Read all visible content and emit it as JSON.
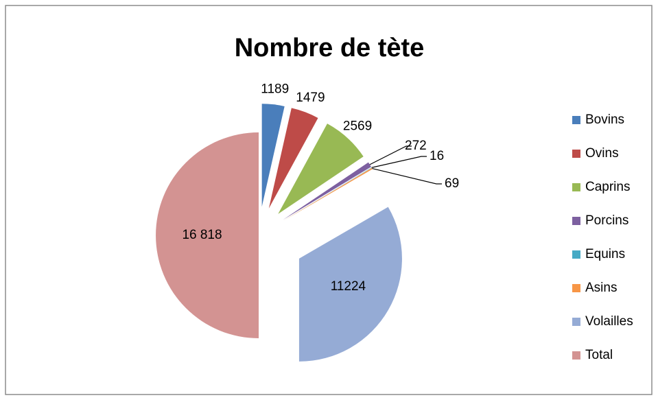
{
  "chart_data": {
    "type": "pie",
    "title": "Nombre de tète",
    "categories": [
      "Bovins",
      "Ovins",
      "Caprins",
      "Porcins",
      "Equins",
      "Asins",
      "Volailles",
      "Total"
    ],
    "values": [
      1189,
      1479,
      2569,
      272,
      16,
      69,
      11224,
      16818
    ],
    "value_labels": [
      "1189",
      "1479",
      "2569",
      "272",
      "16",
      "69",
      "11224",
      "16 818"
    ],
    "colors": [
      "#4a7ebb",
      "#be4b48",
      "#98b954",
      "#7d60a0",
      "#46aac5",
      "#f79646",
      "#95abd5",
      "#d39392"
    ],
    "legend": "right"
  }
}
